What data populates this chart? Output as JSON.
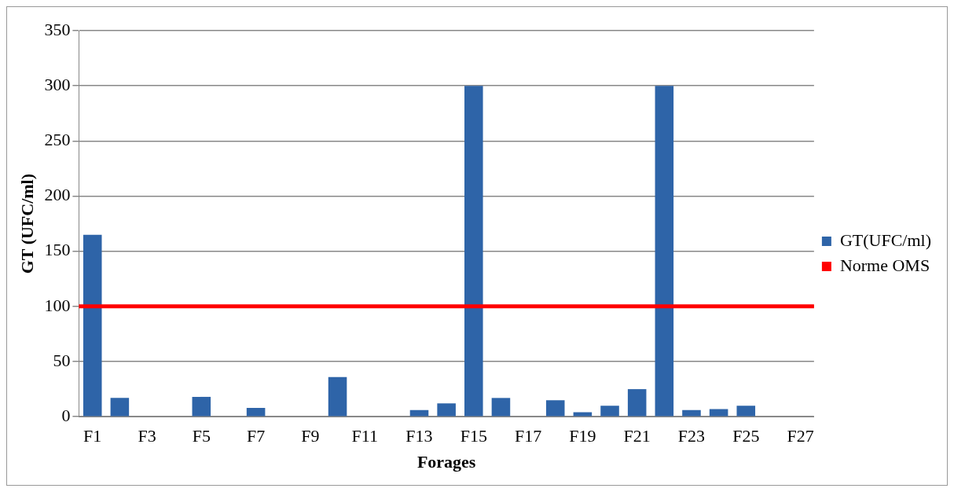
{
  "chart_data": {
    "type": "bar",
    "xlabel": "Forages",
    "ylabel": "GT (UFC/ml)",
    "categories": [
      "F1",
      null,
      "F3",
      null,
      "F5",
      null,
      "F7",
      null,
      "F9",
      null,
      "F11",
      null,
      "F13",
      null,
      "F15",
      null,
      "F17",
      null,
      "F19",
      null,
      "F21",
      null,
      "F23",
      null,
      "F25",
      null,
      "F27"
    ],
    "series": [
      {
        "name": "GT(UFC/ml)",
        "color": "#2e64a8",
        "values": [
          165,
          17,
          0,
          0,
          18,
          0,
          8,
          0,
          0,
          36,
          0,
          0,
          6,
          12,
          300,
          17,
          0,
          15,
          4,
          10,
          25,
          300,
          6,
          7,
          10,
          0,
          0
        ]
      }
    ],
    "ref_lines": [
      {
        "axis": "y",
        "value": 100,
        "label": "Norme OMS",
        "color": "#ff0000"
      }
    ],
    "ylim": [
      0,
      350
    ],
    "yticks": [
      0,
      50,
      100,
      150,
      200,
      250,
      300,
      350
    ],
    "grid": "y",
    "legend": "right"
  }
}
